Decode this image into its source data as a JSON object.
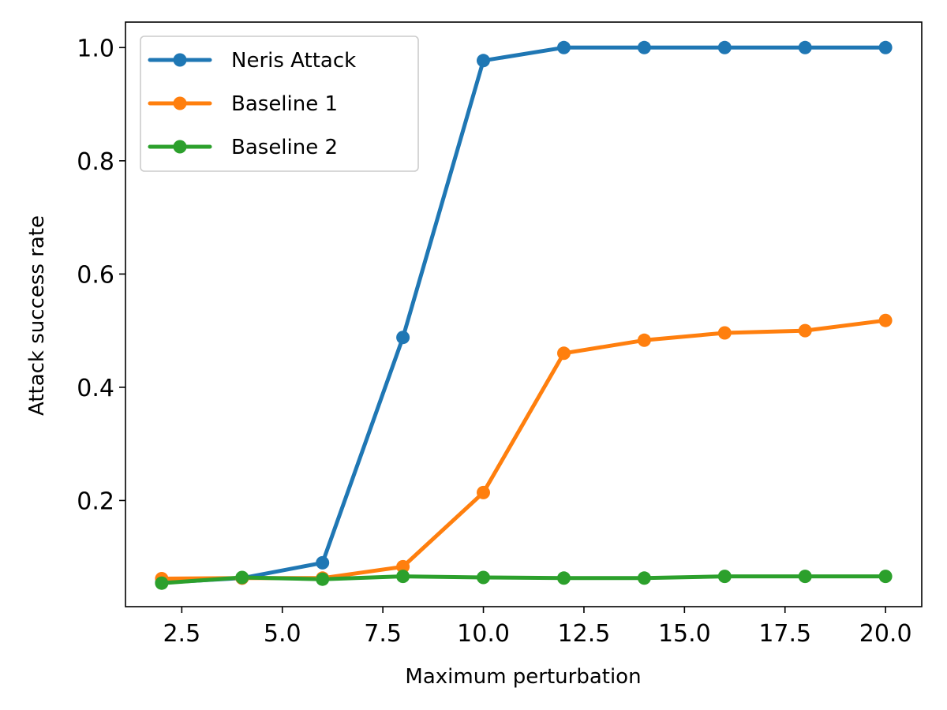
{
  "chart_data": {
    "type": "line",
    "title": "",
    "xlabel": "Maximum perturbation",
    "ylabel": "Attack success rate",
    "xlim": [
      1.1,
      20.9
    ],
    "ylim": [
      0.0125,
      1.045
    ],
    "xticks": [
      2.5,
      5.0,
      7.5,
      10.0,
      12.5,
      15.0,
      17.5,
      20.0
    ],
    "xtick_labels": [
      "2.5",
      "5.0",
      "7.5",
      "10.0",
      "12.5",
      "15.0",
      "17.5",
      "20.0"
    ],
    "yticks": [
      0.2,
      0.4,
      0.6,
      0.8,
      1.0
    ],
    "ytick_labels": [
      "0.2",
      "0.4",
      "0.6",
      "0.8",
      "1.0"
    ],
    "grid": false,
    "legend_position": "top-left",
    "x": [
      2,
      4,
      6,
      8,
      10,
      12,
      14,
      16,
      18,
      20
    ],
    "series": [
      {
        "name": "Neris Attack",
        "color": "#1f77b4",
        "values": [
          0.055,
          0.063,
          0.09,
          0.488,
          0.977,
          1.0,
          1.0,
          1.0,
          1.0,
          1.0
        ]
      },
      {
        "name": "Baseline 1",
        "color": "#ff7f0e",
        "values": [
          0.062,
          0.063,
          0.063,
          0.083,
          0.214,
          0.46,
          0.483,
          0.496,
          0.5,
          0.518
        ]
      },
      {
        "name": "Baseline 2",
        "color": "#2ca02c",
        "values": [
          0.054,
          0.064,
          0.061,
          0.066,
          0.064,
          0.063,
          0.063,
          0.066,
          0.066,
          0.066
        ]
      }
    ]
  }
}
